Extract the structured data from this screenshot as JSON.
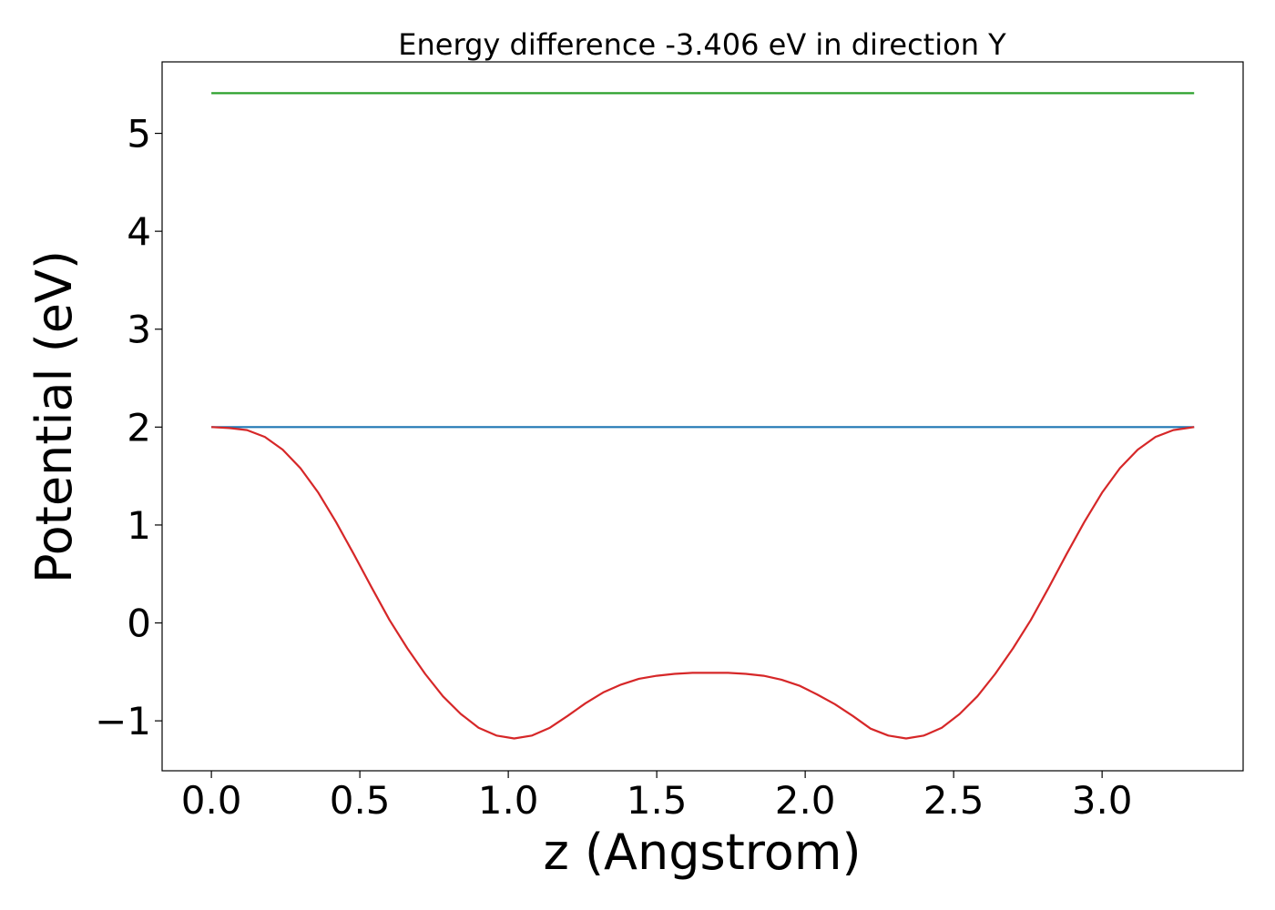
{
  "chart_data": {
    "type": "line",
    "title": "Energy difference -3.406 eV in direction Y",
    "xlabel": "z (Angstrom)",
    "ylabel": "Potential (eV)",
    "xlim": [
      -0.166,
      3.475
    ],
    "ylim": [
      -1.51,
      5.73
    ],
    "xticks": [
      0.0,
      0.5,
      1.0,
      1.5,
      2.0,
      2.5,
      3.0
    ],
    "xtick_labels": [
      "0.0",
      "0.5",
      "1.0",
      "1.5",
      "2.0",
      "2.5",
      "3.0"
    ],
    "yticks": [
      -1,
      0,
      1,
      2,
      3,
      4,
      5
    ],
    "ytick_labels": [
      "−1",
      "0",
      "1",
      "2",
      "3",
      "4",
      "5"
    ],
    "grid": false,
    "series": [
      {
        "color": "#2ca02c",
        "x": [
          0.0,
          3.31
        ],
        "y": [
          5.41,
          5.41
        ]
      },
      {
        "color": "#1f77b4",
        "x": [
          0.0,
          3.31
        ],
        "y": [
          2.0,
          2.0
        ]
      },
      {
        "color": "#d62728",
        "x": [
          0.0,
          0.06,
          0.12,
          0.18,
          0.24,
          0.3,
          0.36,
          0.42,
          0.48,
          0.54,
          0.6,
          0.66,
          0.72,
          0.78,
          0.84,
          0.9,
          0.96,
          1.02,
          1.08,
          1.14,
          1.2,
          1.26,
          1.32,
          1.38,
          1.44,
          1.5,
          1.56,
          1.62,
          1.68,
          1.74,
          1.8,
          1.86,
          1.92,
          1.98,
          2.04,
          2.1,
          2.16,
          2.22,
          2.28,
          2.34,
          2.4,
          2.46,
          2.52,
          2.58,
          2.64,
          2.7,
          2.76,
          2.82,
          2.88,
          2.94,
          3.0,
          3.06,
          3.12,
          3.18,
          3.24,
          3.31
        ],
        "y": [
          2.0,
          1.99,
          1.97,
          1.9,
          1.77,
          1.58,
          1.33,
          1.03,
          0.7,
          0.36,
          0.03,
          -0.26,
          -0.52,
          -0.75,
          -0.93,
          -1.07,
          -1.15,
          -1.18,
          -1.15,
          -1.07,
          -0.95,
          -0.82,
          -0.71,
          -0.63,
          -0.57,
          -0.54,
          -0.52,
          -0.51,
          -0.51,
          -0.51,
          -0.52,
          -0.54,
          -0.58,
          -0.64,
          -0.73,
          -0.83,
          -0.95,
          -1.08,
          -1.15,
          -1.18,
          -1.15,
          -1.07,
          -0.93,
          -0.75,
          -0.52,
          -0.26,
          0.03,
          0.36,
          0.7,
          1.03,
          1.33,
          1.58,
          1.77,
          1.9,
          1.97,
          2.0
        ]
      }
    ]
  }
}
